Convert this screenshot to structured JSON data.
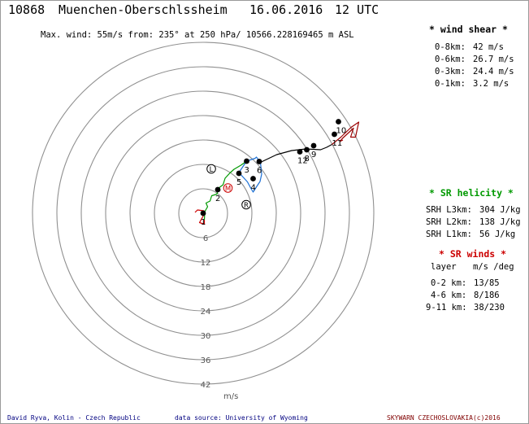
{
  "header": {
    "station": "10868",
    "name": "Muenchen-Oberschlssheim",
    "date": "16.06.2016",
    "time": "12 UTC",
    "maxwind": "Max. wind: 55m/s from: 235° at 250 hPa/ 10566.228169465 m ASL"
  },
  "wind_shear": {
    "title": "* wind shear *",
    "rows": [
      {
        "label": "0-8km:",
        "value": "42 m/s"
      },
      {
        "label": "0-6km:",
        "value": "26.7 m/s"
      },
      {
        "label": "0-3km:",
        "value": "24.4 m/s"
      },
      {
        "label": "0-1km:",
        "value": "3.2 m/s"
      }
    ]
  },
  "sr_helicity": {
    "title": "* SR helicity *",
    "rows": [
      {
        "label": "SRH L3km:",
        "value": "304 J/kg"
      },
      {
        "label": "SRH L2km:",
        "value": "138 J/kg"
      },
      {
        "label": "SRH L1km:",
        "value": "56 J/kg"
      }
    ]
  },
  "sr_winds": {
    "title": "* SR winds *",
    "head_layer": "layer",
    "head_units": "m/s /deg",
    "rows": [
      {
        "label": "0-2 km:",
        "value": "13/85"
      },
      {
        "label": "4-6 km:",
        "value": "8/186"
      },
      {
        "label": "9-11 km:",
        "value": "38/230"
      }
    ]
  },
  "footer": {
    "left": "David Ryva, Kolin - Czech Republic",
    "mid": "data source: University of Wyoming",
    "right": "SKYWARN CZECHOSLOVAKIA(c)2016"
  },
  "chart_data": {
    "type": "hodograph",
    "rings_ms": [
      6,
      12,
      18,
      24,
      30,
      36,
      42
    ],
    "ring_labels": [
      "6",
      "12",
      "18",
      "24",
      "30",
      "36",
      "42"
    ],
    "units": "m/s",
    "segments": [
      {
        "color": "#cc0000",
        "points": [
          [
            -2.0,
            0.2
          ],
          [
            -1.4,
            0.8
          ],
          [
            0.2,
            0.6
          ],
          [
            0,
            -0.7
          ],
          [
            -0.9,
            -2.3
          ],
          [
            0.3,
            -2.7
          ],
          [
            0.3,
            -1.6
          ]
        ]
      },
      {
        "color": "#009900",
        "points": [
          [
            0.3,
            -1.6
          ],
          [
            0.4,
            0.4
          ],
          [
            1.1,
            1.6
          ],
          [
            0.7,
            2.5
          ],
          [
            1.7,
            3.0
          ],
          [
            2.1,
            4.3
          ],
          [
            3.4,
            4.7
          ],
          [
            3.7,
            6.1
          ],
          [
            4.9,
            7.0
          ],
          [
            5.4,
            8.6
          ],
          [
            6.6,
            9.9
          ],
          [
            7.6,
            10.8
          ],
          [
            9.3,
            11.8
          ],
          [
            10.7,
            12.8
          ]
        ]
      },
      {
        "color": "#1a6fd6",
        "points": [
          [
            10.7,
            12.8
          ],
          [
            8.8,
            10.0
          ],
          [
            9.9,
            8.8
          ],
          [
            10.9,
            7.7
          ],
          [
            11.7,
            6.2
          ],
          [
            12.3,
            5.2
          ],
          [
            13.2,
            6.6
          ],
          [
            14.0,
            7.8
          ],
          [
            14.4,
            9.6
          ],
          [
            14.1,
            12.5
          ],
          [
            13.1,
            13.8
          ],
          [
            12.8,
            13.5
          ],
          [
            10.7,
            12.8
          ]
        ]
      },
      {
        "color": "#000000",
        "points": [
          [
            14.1,
            12.5
          ],
          [
            18.1,
            14.4
          ],
          [
            21.8,
            15.4
          ],
          [
            25.3,
            15.8
          ],
          [
            28.9,
            15.6
          ],
          [
            30.4,
            16.2
          ],
          [
            31.7,
            16.9
          ]
        ]
      },
      {
        "color": "#9b0000",
        "points": [
          [
            31.7,
            16.9
          ],
          [
            33.9,
            18.7
          ],
          [
            36.4,
            21.1
          ],
          [
            38.3,
            22.4
          ],
          [
            37.5,
            18.7
          ],
          [
            36.3,
            18.7
          ],
          [
            37.0,
            20.9
          ],
          [
            34.3,
            18.4
          ],
          [
            33.6,
            17.6
          ],
          [
            34.4,
            18.0
          ]
        ]
      }
    ],
    "markers": [
      {
        "label": "1",
        "u": 0,
        "v": 0
      },
      {
        "label": "2",
        "u": 3.6,
        "v": 5.8
      },
      {
        "label": "3",
        "u": 10.7,
        "v": 12.8
      },
      {
        "label": "4",
        "u": 12.3,
        "v": 8.5
      },
      {
        "label": "5",
        "u": 8.8,
        "v": 9.8
      },
      {
        "label": "6",
        "u": 13.8,
        "v": 12.7
      },
      {
        "label": "8",
        "u": 25.5,
        "v": 15.6
      },
      {
        "label": "9",
        "u": 27.2,
        "v": 16.6
      },
      {
        "label": "10",
        "u": 33.3,
        "v": 22.5
      },
      {
        "label": "11",
        "u": 32.3,
        "v": 19.4
      },
      {
        "label": "12",
        "u": 23.8,
        "v": 15.1
      }
    ],
    "storm_symbols": [
      {
        "label": "L",
        "u": 2.0,
        "v": 10.9
      },
      {
        "label": "M",
        "u": 6.1,
        "v": 6.2
      },
      {
        "label": "R",
        "u": 10.6,
        "v": 2.1
      }
    ]
  }
}
